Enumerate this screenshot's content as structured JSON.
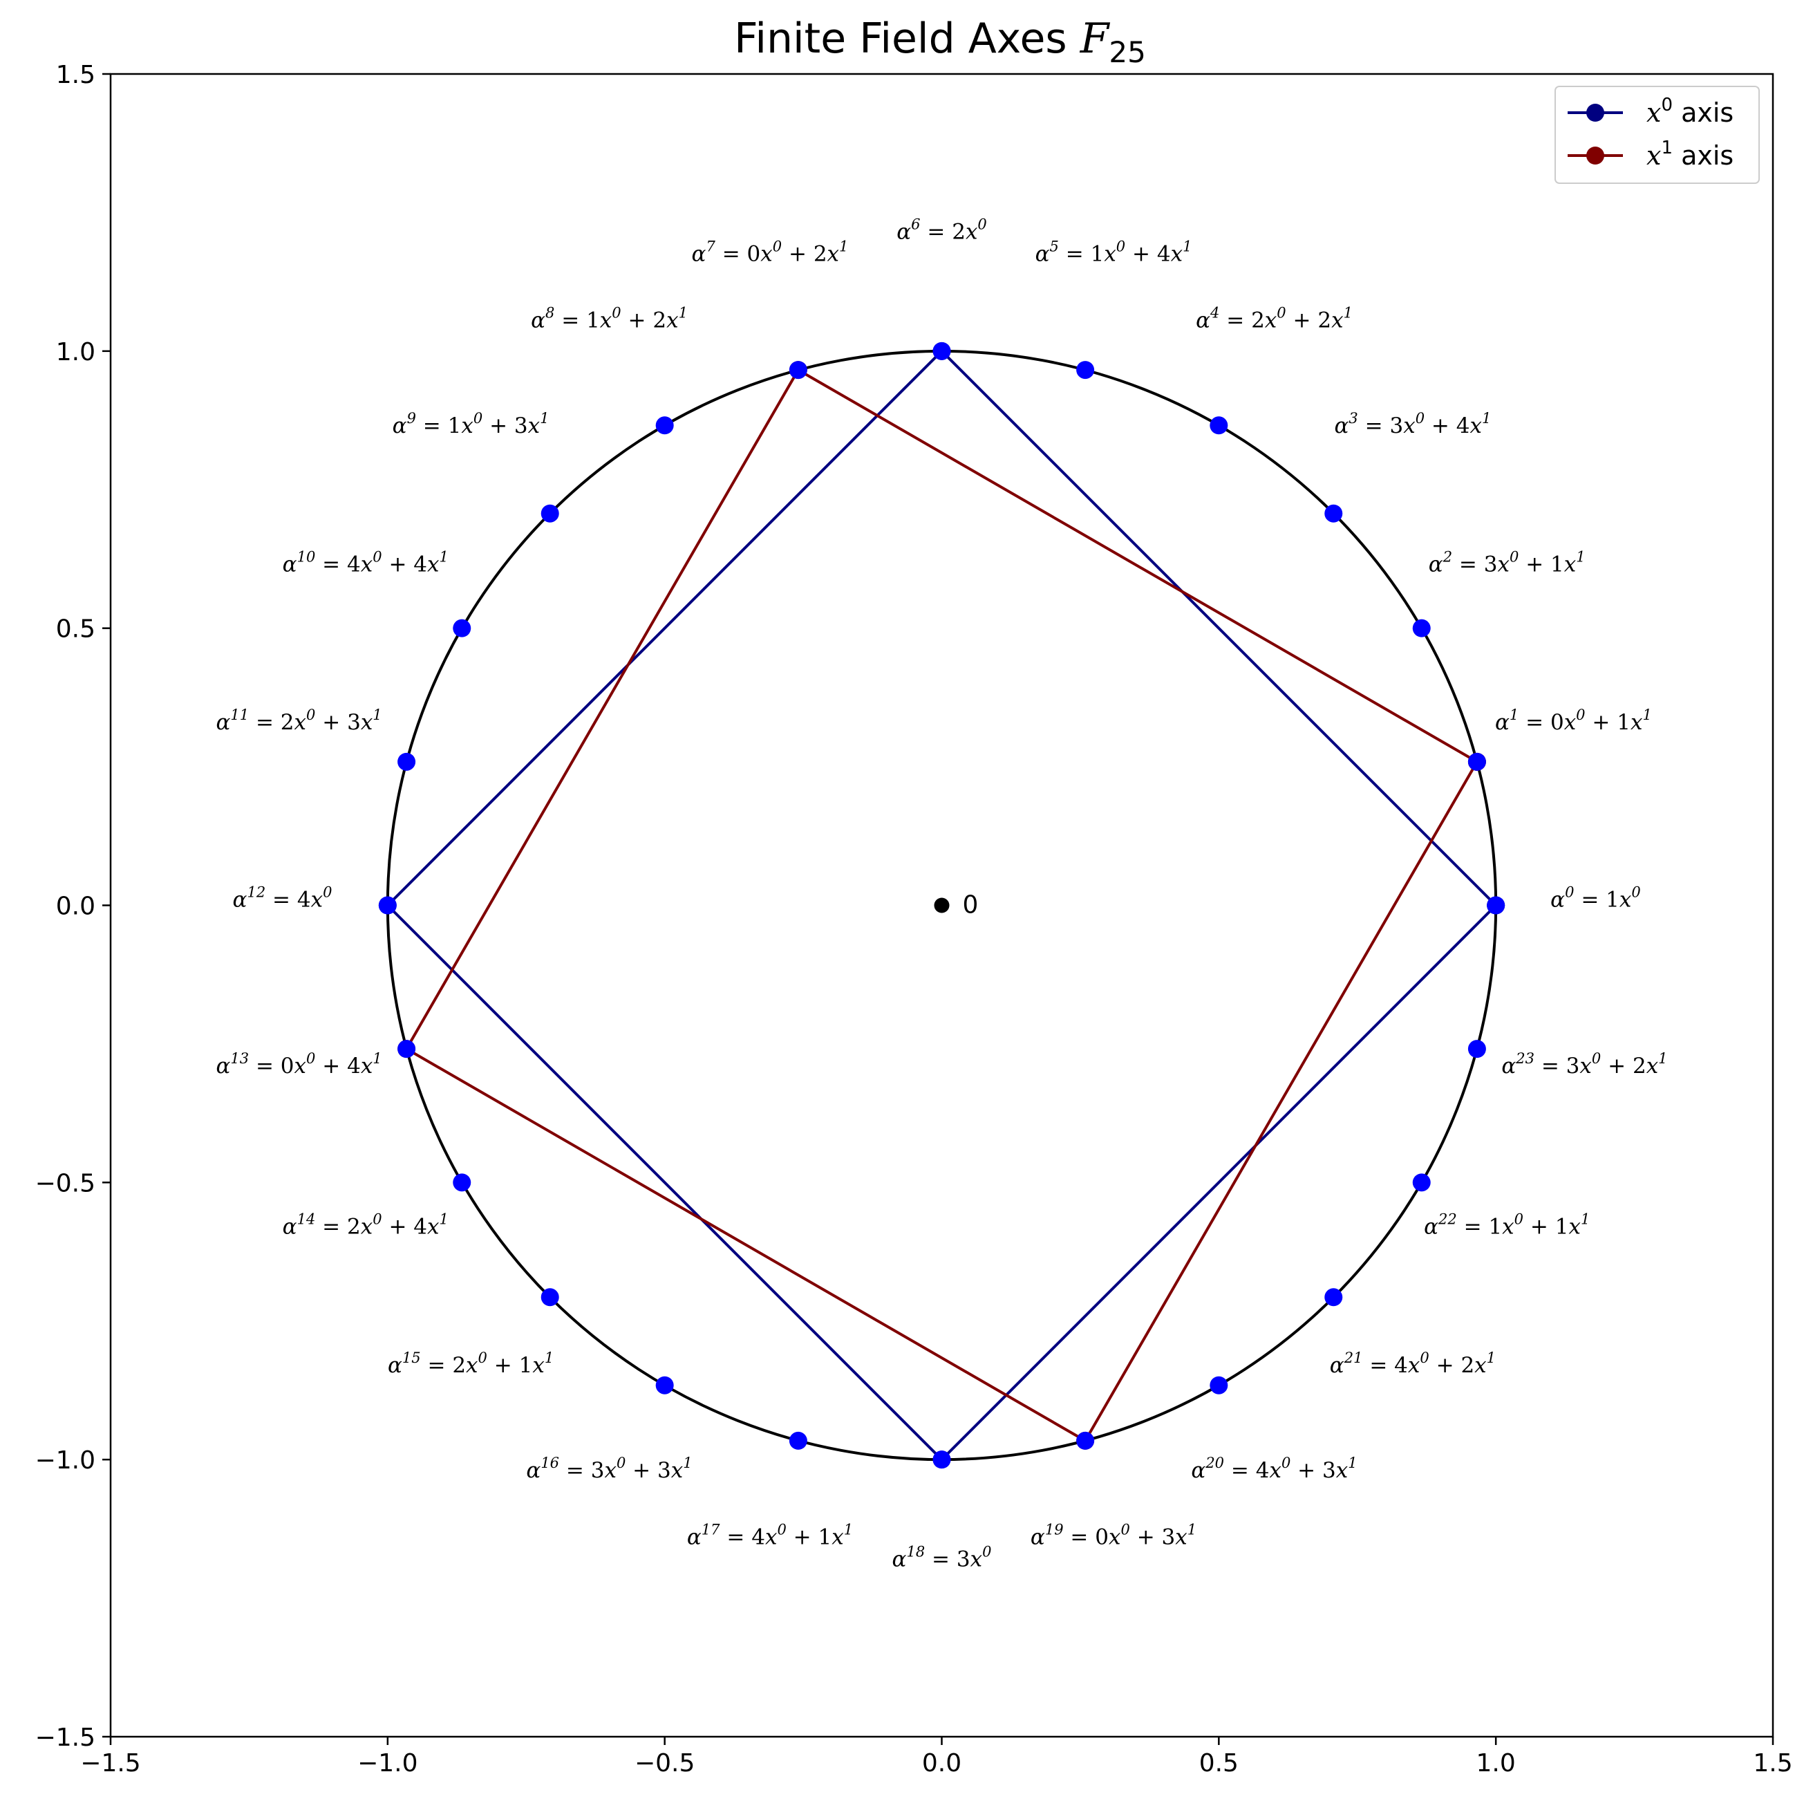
{
  "chart_data": {
    "type": "scatter",
    "title": {
      "text": "Finite Field Axes ",
      "math_base": "F",
      "math_sub": "25"
    },
    "xlim": [
      -1.5,
      1.5
    ],
    "ylim": [
      -1.5,
      1.5
    ],
    "xticks": [
      -1.5,
      -1.0,
      -0.5,
      0.0,
      0.5,
      1.0,
      1.5
    ],
    "yticks": [
      -1.5,
      -1.0,
      -0.5,
      0.0,
      0.5,
      1.0,
      1.5
    ],
    "xtick_labels": [
      "−1.5",
      "−1.0",
      "−0.5",
      "0.0",
      "0.5",
      "1.0",
      "1.5"
    ],
    "ytick_labels": [
      "−1.5",
      "−1.0",
      "−0.5",
      "0.0",
      "0.5",
      "1.0",
      "1.5"
    ],
    "grid": false,
    "legend_position": "top-right",
    "colors": {
      "circle": "#000000",
      "points": "#0000ff",
      "x0_axis": "#000080",
      "x1_axis": "#800000",
      "origin": "#000000"
    },
    "unit_circle": {
      "center": [
        0,
        0
      ],
      "radius": 1
    },
    "origin_point": {
      "x": 0,
      "y": 0,
      "label": "0"
    },
    "points": [
      {
        "k": 0,
        "x": 1.0,
        "y": 0.0,
        "lx": 1.18,
        "ly": 0.01,
        "a": "0",
        "c0": "1",
        "c1": null
      },
      {
        "k": 1,
        "x": 0.966,
        "y": 0.259,
        "lx": 1.14,
        "ly": 0.33,
        "a": "1",
        "c0": "0",
        "c1": "1"
      },
      {
        "k": 2,
        "x": 0.866,
        "y": 0.5,
        "lx": 1.02,
        "ly": 0.615,
        "a": "2",
        "c0": "3",
        "c1": "1"
      },
      {
        "k": 3,
        "x": 0.707,
        "y": 0.707,
        "lx": 0.85,
        "ly": 0.865,
        "a": "3",
        "c0": "3",
        "c1": "4"
      },
      {
        "k": 4,
        "x": 0.5,
        "y": 0.866,
        "lx": 0.6,
        "ly": 1.055,
        "a": "4",
        "c0": "2",
        "c1": "2"
      },
      {
        "k": 5,
        "x": 0.259,
        "y": 0.966,
        "lx": 0.31,
        "ly": 1.175,
        "a": "5",
        "c0": "1",
        "c1": "4"
      },
      {
        "k": 6,
        "x": 0.0,
        "y": 1.0,
        "lx": 0.0,
        "ly": 1.215,
        "a": "6",
        "c0": "2",
        "c1": null
      },
      {
        "k": 7,
        "x": -0.259,
        "y": 0.966,
        "lx": -0.31,
        "ly": 1.175,
        "a": "7",
        "c0": "0",
        "c1": "2"
      },
      {
        "k": 8,
        "x": -0.5,
        "y": 0.866,
        "lx": -0.6,
        "ly": 1.055,
        "a": "8",
        "c0": "1",
        "c1": "2"
      },
      {
        "k": 9,
        "x": -0.707,
        "y": 0.707,
        "lx": -0.85,
        "ly": 0.865,
        "a": "9",
        "c0": "1",
        "c1": "3"
      },
      {
        "k": 10,
        "x": -0.866,
        "y": 0.5,
        "lx": -1.04,
        "ly": 0.615,
        "a": "10",
        "c0": "4",
        "c1": "4"
      },
      {
        "k": 11,
        "x": -0.966,
        "y": 0.259,
        "lx": -1.16,
        "ly": 0.33,
        "a": "11",
        "c0": "2",
        "c1": "3"
      },
      {
        "k": 12,
        "x": -1.0,
        "y": 0.0,
        "lx": -1.19,
        "ly": 0.01,
        "a": "12",
        "c0": "4",
        "c1": null
      },
      {
        "k": 13,
        "x": -0.966,
        "y": -0.259,
        "lx": -1.16,
        "ly": -0.29,
        "a": "13",
        "c0": "0",
        "c1": "4"
      },
      {
        "k": 14,
        "x": -0.866,
        "y": -0.5,
        "lx": -1.04,
        "ly": -0.58,
        "a": "14",
        "c0": "2",
        "c1": "4"
      },
      {
        "k": 15,
        "x": -0.707,
        "y": -0.707,
        "lx": -0.85,
        "ly": -0.83,
        "a": "15",
        "c0": "2",
        "c1": "1"
      },
      {
        "k": 16,
        "x": -0.5,
        "y": -0.866,
        "lx": -0.6,
        "ly": -1.02,
        "a": "16",
        "c0": "3",
        "c1": "3"
      },
      {
        "k": 17,
        "x": -0.259,
        "y": -0.966,
        "lx": -0.31,
        "ly": -1.14,
        "a": "17",
        "c0": "4",
        "c1": "1"
      },
      {
        "k": 18,
        "x": 0.0,
        "y": -1.0,
        "lx": 0.0,
        "ly": -1.18,
        "a": "18",
        "c0": "3",
        "c1": null
      },
      {
        "k": 19,
        "x": 0.259,
        "y": -0.966,
        "lx": 0.31,
        "ly": -1.14,
        "a": "19",
        "c0": "0",
        "c1": "3"
      },
      {
        "k": 20,
        "x": 0.5,
        "y": -0.866,
        "lx": 0.6,
        "ly": -1.02,
        "a": "20",
        "c0": "4",
        "c1": "3"
      },
      {
        "k": 21,
        "x": 0.707,
        "y": -0.707,
        "lx": 0.85,
        "ly": -0.83,
        "a": "21",
        "c0": "4",
        "c1": "2"
      },
      {
        "k": 22,
        "x": 0.866,
        "y": -0.5,
        "lx": 1.02,
        "ly": -0.58,
        "a": "22",
        "c0": "1",
        "c1": "1"
      },
      {
        "k": 23,
        "x": 0.966,
        "y": -0.259,
        "lx": 1.16,
        "ly": -0.29,
        "a": "23",
        "c0": "3",
        "c1": "2"
      }
    ],
    "series": [
      {
        "name": "x0 axis",
        "legend": {
          "math_base": "x",
          "math_sup": "0",
          "suffix": " axis"
        },
        "color": "#000080",
        "x": [
          1.0,
          0.0,
          -1.0,
          0.0,
          1.0
        ],
        "y": [
          0.0,
          1.0,
          0.0,
          -1.0,
          0.0
        ]
      },
      {
        "name": "x1 axis",
        "legend": {
          "math_base": "x",
          "math_sup": "1",
          "suffix": " axis"
        },
        "color": "#800000",
        "x": [
          0.966,
          -0.259,
          -0.966,
          0.259,
          0.966
        ],
        "y": [
          0.259,
          0.966,
          -0.259,
          -0.966,
          0.259
        ]
      }
    ]
  }
}
